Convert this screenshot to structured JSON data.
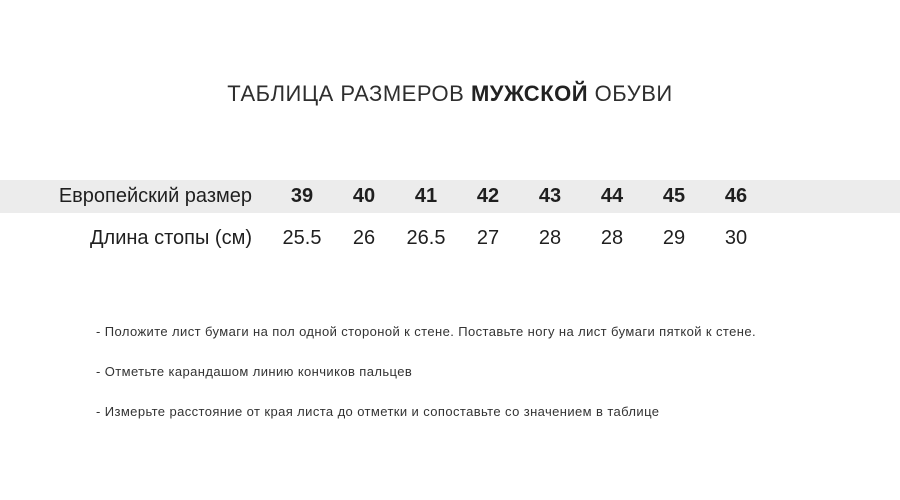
{
  "title": {
    "prefix": "ТАБЛИЦА РАЗМЕРОВ",
    "highlight": "МУЖСКОЙ",
    "suffix": "ОБУВИ"
  },
  "size_table": {
    "header_row": {
      "label": "Европейский размер",
      "values": [
        "39",
        "40",
        "41",
        "42",
        "43",
        "44",
        "45",
        "46"
      ]
    },
    "data_row": {
      "label": "Длина стопы (см)",
      "values": [
        "25.5",
        "26",
        "26.5",
        "27",
        "28",
        "28",
        "29",
        "30"
      ]
    }
  },
  "instructions": {
    "items": [
      "- Положите лист бумаги на пол одной стороной к стене. Поставьте ногу на лист бумаги пяткой к стене.",
      "- Отметьте карандашом линию кончиков пальцев",
      "- Измерьте расстояние от края листа до отметки и сопоставьте со значением в таблице"
    ]
  },
  "colors": {
    "header_row_bg": "#ececec",
    "table_text": "#1f1f1f",
    "title_text": "#2e2e2e",
    "instruction_text": "#333333"
  }
}
